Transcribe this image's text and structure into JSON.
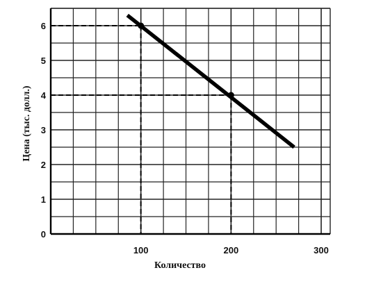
{
  "chart_data": {
    "type": "line",
    "title": "",
    "xlabel": "Количество",
    "ylabel": "Цена (тыс. долл.)",
    "xlim": [
      0,
      310
    ],
    "ylim": [
      0,
      6.5
    ],
    "grid": true,
    "x_ticks": [
      {
        "value": 100,
        "label": "100"
      },
      {
        "value": 200,
        "label": "200"
      },
      {
        "value": 300,
        "label": "300"
      }
    ],
    "y_ticks": [
      {
        "value": 0,
        "label": "0"
      },
      {
        "value": 1,
        "label": "1"
      },
      {
        "value": 2,
        "label": "2"
      },
      {
        "value": 3,
        "label": "3"
      },
      {
        "value": 4,
        "label": "4"
      },
      {
        "value": 5,
        "label": "5"
      },
      {
        "value": 6,
        "label": "6"
      }
    ],
    "series": [
      {
        "points": [
          {
            "x": 85,
            "y": 6.3
          },
          {
            "x": 270,
            "y": 2.5
          }
        ]
      }
    ],
    "marked_points": [
      {
        "x": 100,
        "y": 6
      },
      {
        "x": 200,
        "y": 4
      }
    ],
    "colors": {
      "line": "#000000",
      "grid": "#222222",
      "guide": "#000000"
    }
  }
}
